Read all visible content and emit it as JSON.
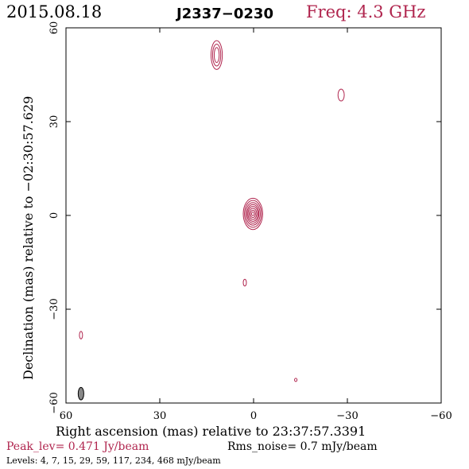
{
  "header": {
    "date": "2015.08.18",
    "source": "J2337−0230",
    "frequency": "Freq: 4.3 GHz"
  },
  "footer": {
    "peak": "Peak_lev=  0.471 Jy/beam",
    "rms": "Rms_noise=  0.7 mJy/beam",
    "levels": "Levels:   4,   7,  15,  29,  59, 117, 234, 468 mJy/beam"
  },
  "colors": {
    "contour": "#b0254e",
    "axis": "#000000",
    "beam": "#888888"
  },
  "chart_data": {
    "type": "contour",
    "xlabel": "Right ascension (mas) relative to 23:37:57.3391",
    "ylabel": "Declination (mas) relative to −02:30:57.629",
    "xlim": [
      60,
      -60
    ],
    "ylim": [
      -60,
      60
    ],
    "xticks": [
      60,
      30,
      0,
      -30,
      -60
    ],
    "yticks": [
      -60,
      -30,
      0,
      30,
      60
    ],
    "xtick_labels": [
      "60",
      "30",
      "0",
      "−30",
      "−60"
    ],
    "ytick_labels": [
      "−60",
      "−30",
      "0",
      "30",
      "60"
    ],
    "components": [
      {
        "name": "core",
        "x": 0.2,
        "y": 0.5,
        "rx": [
          3.1,
          2.7,
          2.3,
          1.9,
          1.6,
          1.2,
          0.8,
          0.4
        ],
        "ry": [
          5.0,
          4.3,
          3.6,
          3.0,
          2.4,
          1.8,
          1.2,
          0.6
        ]
      },
      {
        "name": "north-blob",
        "x": 11.8,
        "y": 51.3,
        "rx": [
          1.8,
          1.3,
          0.8
        ],
        "ry": [
          4.6,
          3.5,
          2.4
        ]
      },
      {
        "name": "northeast-spot",
        "x": -28.0,
        "y": 38.5,
        "rx": [
          1.0
        ],
        "ry": [
          1.9
        ]
      },
      {
        "name": "small-spot",
        "x": 2.8,
        "y": -21.5,
        "rx": [
          0.5
        ],
        "ry": [
          1.1
        ]
      },
      {
        "name": "west-spot",
        "x": 55.2,
        "y": -38.3,
        "rx": [
          0.5
        ],
        "ry": [
          1.2
        ]
      },
      {
        "name": "southeast-dot",
        "x": -13.5,
        "y": -52.6,
        "rx": [
          0.4
        ],
        "ry": [
          0.5
        ]
      }
    ],
    "beam": {
      "x": 55.2,
      "y": -57.0,
      "rx": 0.9,
      "ry": 2.0
    }
  }
}
